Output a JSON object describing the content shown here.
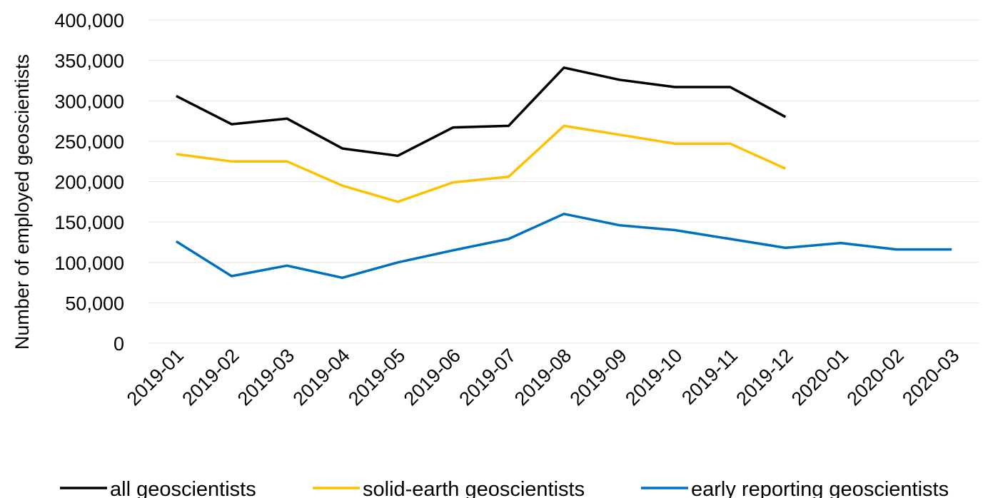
{
  "chart_data": {
    "type": "line",
    "title": "",
    "xlabel": "",
    "ylabel": "Number of employed geoscientists",
    "ylim": [
      0,
      400000
    ],
    "y_ticks": [
      "0",
      "50,000",
      "100,000",
      "150,000",
      "200,000",
      "250,000",
      "300,000",
      "350,000",
      "400,000"
    ],
    "y_tick_values": [
      0,
      50000,
      100000,
      150000,
      200000,
      250000,
      300000,
      350000,
      400000
    ],
    "grid": true,
    "legend_position": "bottom",
    "categories": [
      "2019-01",
      "2019-02",
      "2019-03",
      "2019-04",
      "2019-05",
      "2019-06",
      "2019-07",
      "2019-08",
      "2019-09",
      "2019-10",
      "2019-11",
      "2019-12",
      "2020-01",
      "2020-02",
      "2020-03"
    ],
    "series": [
      {
        "name": "all geoscientists",
        "color": "#000000",
        "values": [
          306000,
          271000,
          278000,
          241000,
          232000,
          267000,
          269000,
          341000,
          326000,
          317000,
          317000,
          280000,
          null,
          null,
          null
        ]
      },
      {
        "name": "solid-earth geoscientists",
        "color": "#ffc000",
        "values": [
          234000,
          225000,
          225000,
          195000,
          175000,
          199000,
          206000,
          269000,
          258000,
          247000,
          247000,
          216000,
          null,
          null,
          null
        ]
      },
      {
        "name": "early reporting geoscientists",
        "color": "#0070c0",
        "values": [
          126000,
          83000,
          96000,
          81000,
          100000,
          115000,
          129000,
          160000,
          146000,
          140000,
          129000,
          118000,
          124000,
          116000,
          116000
        ]
      }
    ]
  }
}
